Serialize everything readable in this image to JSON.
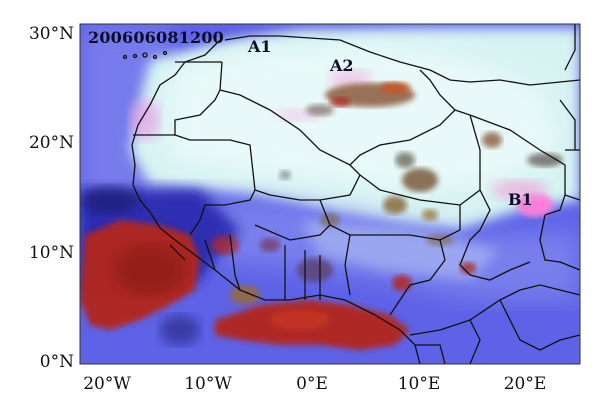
{
  "timestamp": "200606081200",
  "y_axis": {
    "ticks": [
      {
        "label": "30°N"
      },
      {
        "label": "20°N"
      },
      {
        "label": "10°N"
      },
      {
        "label": "0°N"
      }
    ]
  },
  "x_axis": {
    "ticks": [
      {
        "label": "20°W"
      },
      {
        "label": "10°W"
      },
      {
        "label": "0°E"
      },
      {
        "label": "10°E"
      },
      {
        "label": "20°E"
      }
    ]
  },
  "regions": [
    {
      "label": "A1"
    },
    {
      "label": "A2"
    },
    {
      "label": "B1"
    }
  ],
  "colors": {
    "ocean": "#5d62e6",
    "desert": "#d6f3f2",
    "convective_cloud": "#b3261e",
    "dust": "#f3a0dc",
    "borders": "#111111"
  }
}
